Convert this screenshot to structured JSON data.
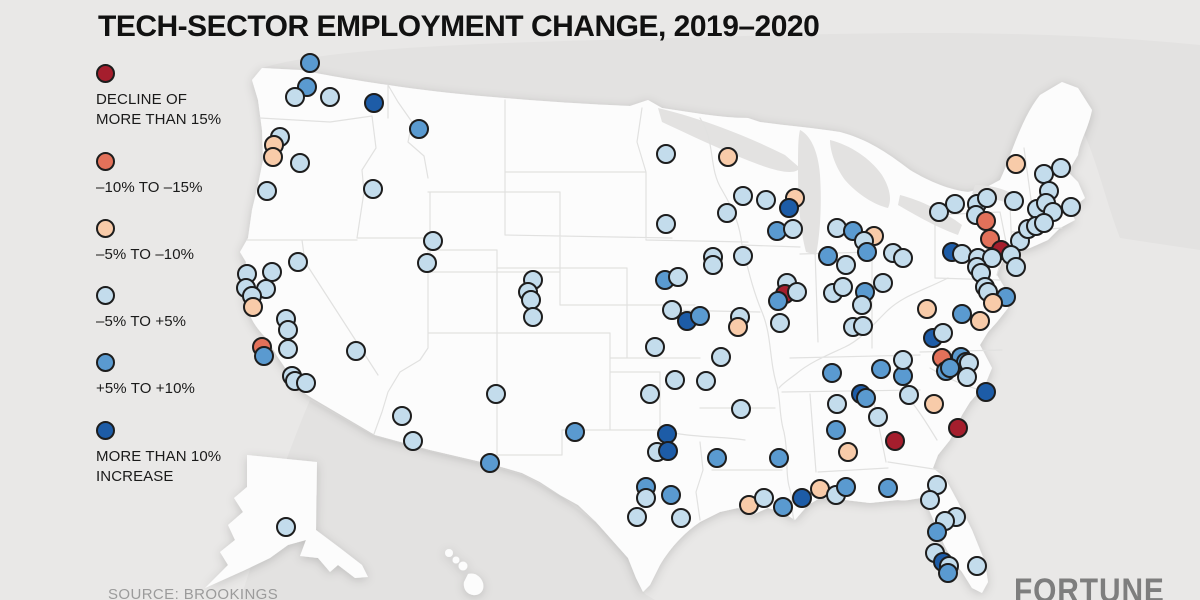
{
  "title": "TECH-SECTOR EMPLOYMENT CHANGE, 2019–2020",
  "source": "SOURCE: BROOKINGS",
  "brand": "FORTUNE",
  "legend": {
    "position": "left",
    "items": [
      {
        "label": "DECLINE OF MORE THAN 15%",
        "color": "#a51e2d"
      },
      {
        "label": "–10% TO –15%",
        "color": "#e2715a"
      },
      {
        "label": "–5% TO –10%",
        "color": "#f8cba9"
      },
      {
        "label": "–5% TO +5%",
        "color": "#c3dcec"
      },
      {
        "label": "+5% TO +10%",
        "color": "#5a9ad0"
      },
      {
        "label": "MORE THAN 10% INCREASE",
        "color": "#1d5ca7"
      }
    ]
  },
  "chart_data": {
    "type": "scatter",
    "subtype": "dot-map-usa",
    "title": "TECH-SECTOR EMPLOYMENT CHANGE, 2019–2020",
    "legend_position": "left",
    "categories": [
      "DECLINE OF MORE THAN 15%",
      "–10% TO –15%",
      "–5% TO –10%",
      "–5% TO +5%",
      "+5% TO +10%",
      "MORE THAN 10% INCREASE"
    ],
    "category_colors": [
      "#a51e2d",
      "#e2715a",
      "#f8cba9",
      "#c3dcec",
      "#5a9ad0",
      "#1d5ca7"
    ],
    "point_format": "[x_px, y_px, category_index_1_to_6]",
    "points": [
      [
        310,
        63,
        5
      ],
      [
        307,
        87,
        5
      ],
      [
        295,
        97,
        4
      ],
      [
        330,
        97,
        4
      ],
      [
        374,
        103,
        6
      ],
      [
        419,
        129,
        5
      ],
      [
        280,
        137,
        4
      ],
      [
        274,
        145,
        3
      ],
      [
        273,
        157,
        3
      ],
      [
        300,
        163,
        4
      ],
      [
        267,
        191,
        4
      ],
      [
        373,
        189,
        4
      ],
      [
        433,
        241,
        4
      ],
      [
        427,
        263,
        4
      ],
      [
        298,
        262,
        4
      ],
      [
        247,
        274,
        4
      ],
      [
        272,
        272,
        4
      ],
      [
        246,
        288,
        4
      ],
      [
        266,
        289,
        4
      ],
      [
        252,
        296,
        4
      ],
      [
        253,
        307,
        3
      ],
      [
        286,
        319,
        4
      ],
      [
        288,
        330,
        4
      ],
      [
        262,
        347,
        2
      ],
      [
        264,
        356,
        5
      ],
      [
        288,
        349,
        4
      ],
      [
        292,
        376,
        4
      ],
      [
        295,
        381,
        4
      ],
      [
        306,
        383,
        4
      ],
      [
        356,
        351,
        4
      ],
      [
        402,
        416,
        4
      ],
      [
        413,
        441,
        4
      ],
      [
        533,
        280,
        4
      ],
      [
        528,
        292,
        4
      ],
      [
        531,
        300,
        4
      ],
      [
        533,
        317,
        4
      ],
      [
        496,
        394,
        4
      ],
      [
        490,
        463,
        5
      ],
      [
        575,
        432,
        5
      ],
      [
        666,
        154,
        4
      ],
      [
        666,
        224,
        4
      ],
      [
        655,
        347,
        4
      ],
      [
        650,
        394,
        4
      ],
      [
        675,
        380,
        4
      ],
      [
        665,
        280,
        5
      ],
      [
        678,
        277,
        4
      ],
      [
        672,
        310,
        4
      ],
      [
        687,
        321,
        6
      ],
      [
        700,
        316,
        5
      ],
      [
        713,
        257,
        4
      ],
      [
        713,
        265,
        4
      ],
      [
        743,
        256,
        4
      ],
      [
        721,
        357,
        4
      ],
      [
        706,
        381,
        4
      ],
      [
        741,
        409,
        4
      ],
      [
        740,
        317,
        4
      ],
      [
        738,
        327,
        3
      ],
      [
        728,
        157,
        3
      ],
      [
        727,
        213,
        4
      ],
      [
        743,
        196,
        4
      ],
      [
        766,
        200,
        4
      ],
      [
        795,
        198,
        3
      ],
      [
        789,
        208,
        6
      ],
      [
        777,
        231,
        5
      ],
      [
        793,
        229,
        4
      ],
      [
        837,
        228,
        4
      ],
      [
        853,
        231,
        5
      ],
      [
        874,
        236,
        3
      ],
      [
        864,
        241,
        4
      ],
      [
        867,
        252,
        5
      ],
      [
        893,
        253,
        4
      ],
      [
        903,
        258,
        4
      ],
      [
        787,
        283,
        4
      ],
      [
        785,
        294,
        1
      ],
      [
        778,
        301,
        5
      ],
      [
        797,
        292,
        4
      ],
      [
        828,
        256,
        5
      ],
      [
        846,
        265,
        4
      ],
      [
        780,
        323,
        4
      ],
      [
        833,
        293,
        4
      ],
      [
        843,
        287,
        4
      ],
      [
        865,
        292,
        5
      ],
      [
        883,
        283,
        4
      ],
      [
        862,
        305,
        4
      ],
      [
        853,
        327,
        4
      ],
      [
        863,
        326,
        4
      ],
      [
        927,
        309,
        3
      ],
      [
        1016,
        164,
        3
      ],
      [
        1044,
        174,
        4
      ],
      [
        1061,
        168,
        4
      ],
      [
        1049,
        191,
        4
      ],
      [
        939,
        212,
        4
      ],
      [
        955,
        204,
        4
      ],
      [
        977,
        204,
        4
      ],
      [
        987,
        198,
        4
      ],
      [
        1014,
        201,
        4
      ],
      [
        1037,
        209,
        4
      ],
      [
        1046,
        203,
        4
      ],
      [
        1053,
        212,
        4
      ],
      [
        1071,
        207,
        4
      ],
      [
        976,
        215,
        4
      ],
      [
        986,
        221,
        2
      ],
      [
        990,
        239,
        2
      ],
      [
        1001,
        250,
        1
      ],
      [
        1020,
        241,
        4
      ],
      [
        1028,
        229,
        4
      ],
      [
        1036,
        226,
        4
      ],
      [
        1044,
        223,
        4
      ],
      [
        952,
        252,
        6
      ],
      [
        962,
        254,
        4
      ],
      [
        978,
        258,
        4
      ],
      [
        992,
        258,
        4
      ],
      [
        1011,
        255,
        4
      ],
      [
        977,
        267,
        4
      ],
      [
        981,
        273,
        4
      ],
      [
        1016,
        267,
        4
      ],
      [
        985,
        287,
        4
      ],
      [
        988,
        292,
        4
      ],
      [
        1006,
        297,
        5
      ],
      [
        993,
        303,
        3
      ],
      [
        962,
        314,
        5
      ],
      [
        980,
        321,
        3
      ],
      [
        933,
        338,
        6
      ],
      [
        943,
        333,
        4
      ],
      [
        832,
        373,
        5
      ],
      [
        881,
        369,
        5
      ],
      [
        903,
        376,
        5
      ],
      [
        903,
        360,
        4
      ],
      [
        861,
        394,
        6
      ],
      [
        866,
        398,
        5
      ],
      [
        837,
        404,
        4
      ],
      [
        909,
        395,
        4
      ],
      [
        878,
        417,
        4
      ],
      [
        836,
        430,
        5
      ],
      [
        895,
        441,
        1
      ],
      [
        848,
        452,
        3
      ],
      [
        942,
        358,
        2
      ],
      [
        961,
        357,
        5
      ],
      [
        966,
        362,
        5
      ],
      [
        969,
        363,
        4
      ],
      [
        946,
        371,
        5
      ],
      [
        950,
        368,
        5
      ],
      [
        967,
        377,
        4
      ],
      [
        986,
        392,
        6
      ],
      [
        934,
        404,
        3
      ],
      [
        958,
        428,
        1
      ],
      [
        717,
        458,
        5
      ],
      [
        779,
        458,
        5
      ],
      [
        749,
        505,
        3
      ],
      [
        764,
        498,
        4
      ],
      [
        783,
        507,
        5
      ],
      [
        802,
        498,
        6
      ],
      [
        820,
        489,
        3
      ],
      [
        836,
        495,
        4
      ],
      [
        846,
        487,
        5
      ],
      [
        888,
        488,
        5
      ],
      [
        937,
        485,
        4
      ],
      [
        930,
        500,
        4
      ],
      [
        956,
        517,
        4
      ],
      [
        945,
        521,
        4
      ],
      [
        937,
        532,
        5
      ],
      [
        935,
        553,
        4
      ],
      [
        943,
        562,
        6
      ],
      [
        949,
        566,
        4
      ],
      [
        948,
        573,
        5
      ],
      [
        977,
        566,
        4
      ],
      [
        667,
        434,
        6
      ],
      [
        657,
        452,
        4
      ],
      [
        668,
        451,
        6
      ],
      [
        646,
        487,
        5
      ],
      [
        646,
        498,
        4
      ],
      [
        671,
        495,
        5
      ],
      [
        637,
        517,
        4
      ],
      [
        681,
        518,
        4
      ],
      [
        286,
        527,
        4
      ]
    ]
  }
}
